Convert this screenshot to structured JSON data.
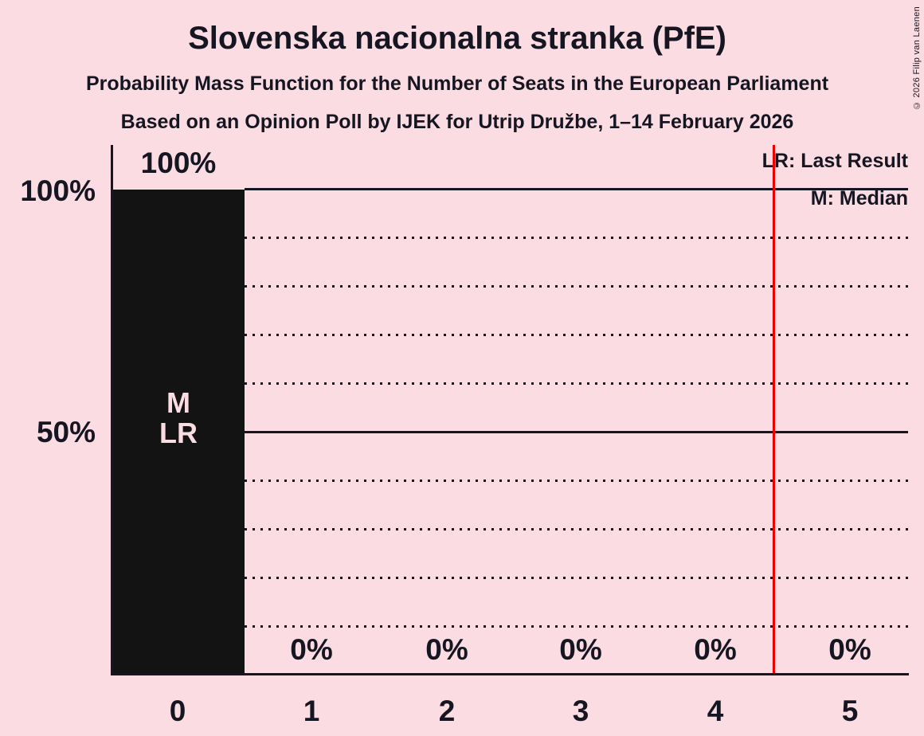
{
  "header": {
    "title": "Slovenska nacionalna stranka (PfE)",
    "subtitle1": "Probability Mass Function for the Number of Seats in the European Parliament",
    "subtitle2": "Based on an Opinion Poll by IJEK for Utrip Družbe, 1–14 February 2026",
    "copyright": "© 2026 Filip van Laenen"
  },
  "legend": {
    "lr": "LR: Last Result",
    "m": "M: Median"
  },
  "chart_data": {
    "type": "bar",
    "title": "Slovenska nacionalna stranka (PfE)",
    "subtitle": "Probability Mass Function for the Number of Seats in the European Parliament",
    "source": "Based on an Opinion Poll by IJEK for Utrip Družbe, 1–14 February 2026",
    "categories": [
      "0",
      "1",
      "2",
      "3",
      "4",
      "5"
    ],
    "values_percent": [
      100,
      0,
      0,
      0,
      0,
      0
    ],
    "value_labels": [
      "100%",
      "0%",
      "0%",
      "0%",
      "0%",
      "0%"
    ],
    "ylim": [
      0,
      100
    ],
    "y_axis_tick_labels": [
      "100%",
      "50%"
    ],
    "y_gridlines_percent": [
      10,
      20,
      30,
      40,
      50,
      60,
      70,
      80,
      90,
      100
    ],
    "y_solid_gridlines_percent": [
      50,
      100
    ],
    "grid_on": true,
    "legend_position": "top-right",
    "legend_entries": [
      "LR: Last Result",
      "M: Median"
    ],
    "median_seats": 0,
    "last_result_seats": 0,
    "bar_annotations": [
      "M",
      "LR"
    ],
    "red_line_x_seats": 4.4,
    "colors": {
      "background": "#fbdce2",
      "bar": "#131313",
      "text": "#161622",
      "bar_inner_label": "#fbdce2",
      "red_line": "#ee0000"
    }
  }
}
